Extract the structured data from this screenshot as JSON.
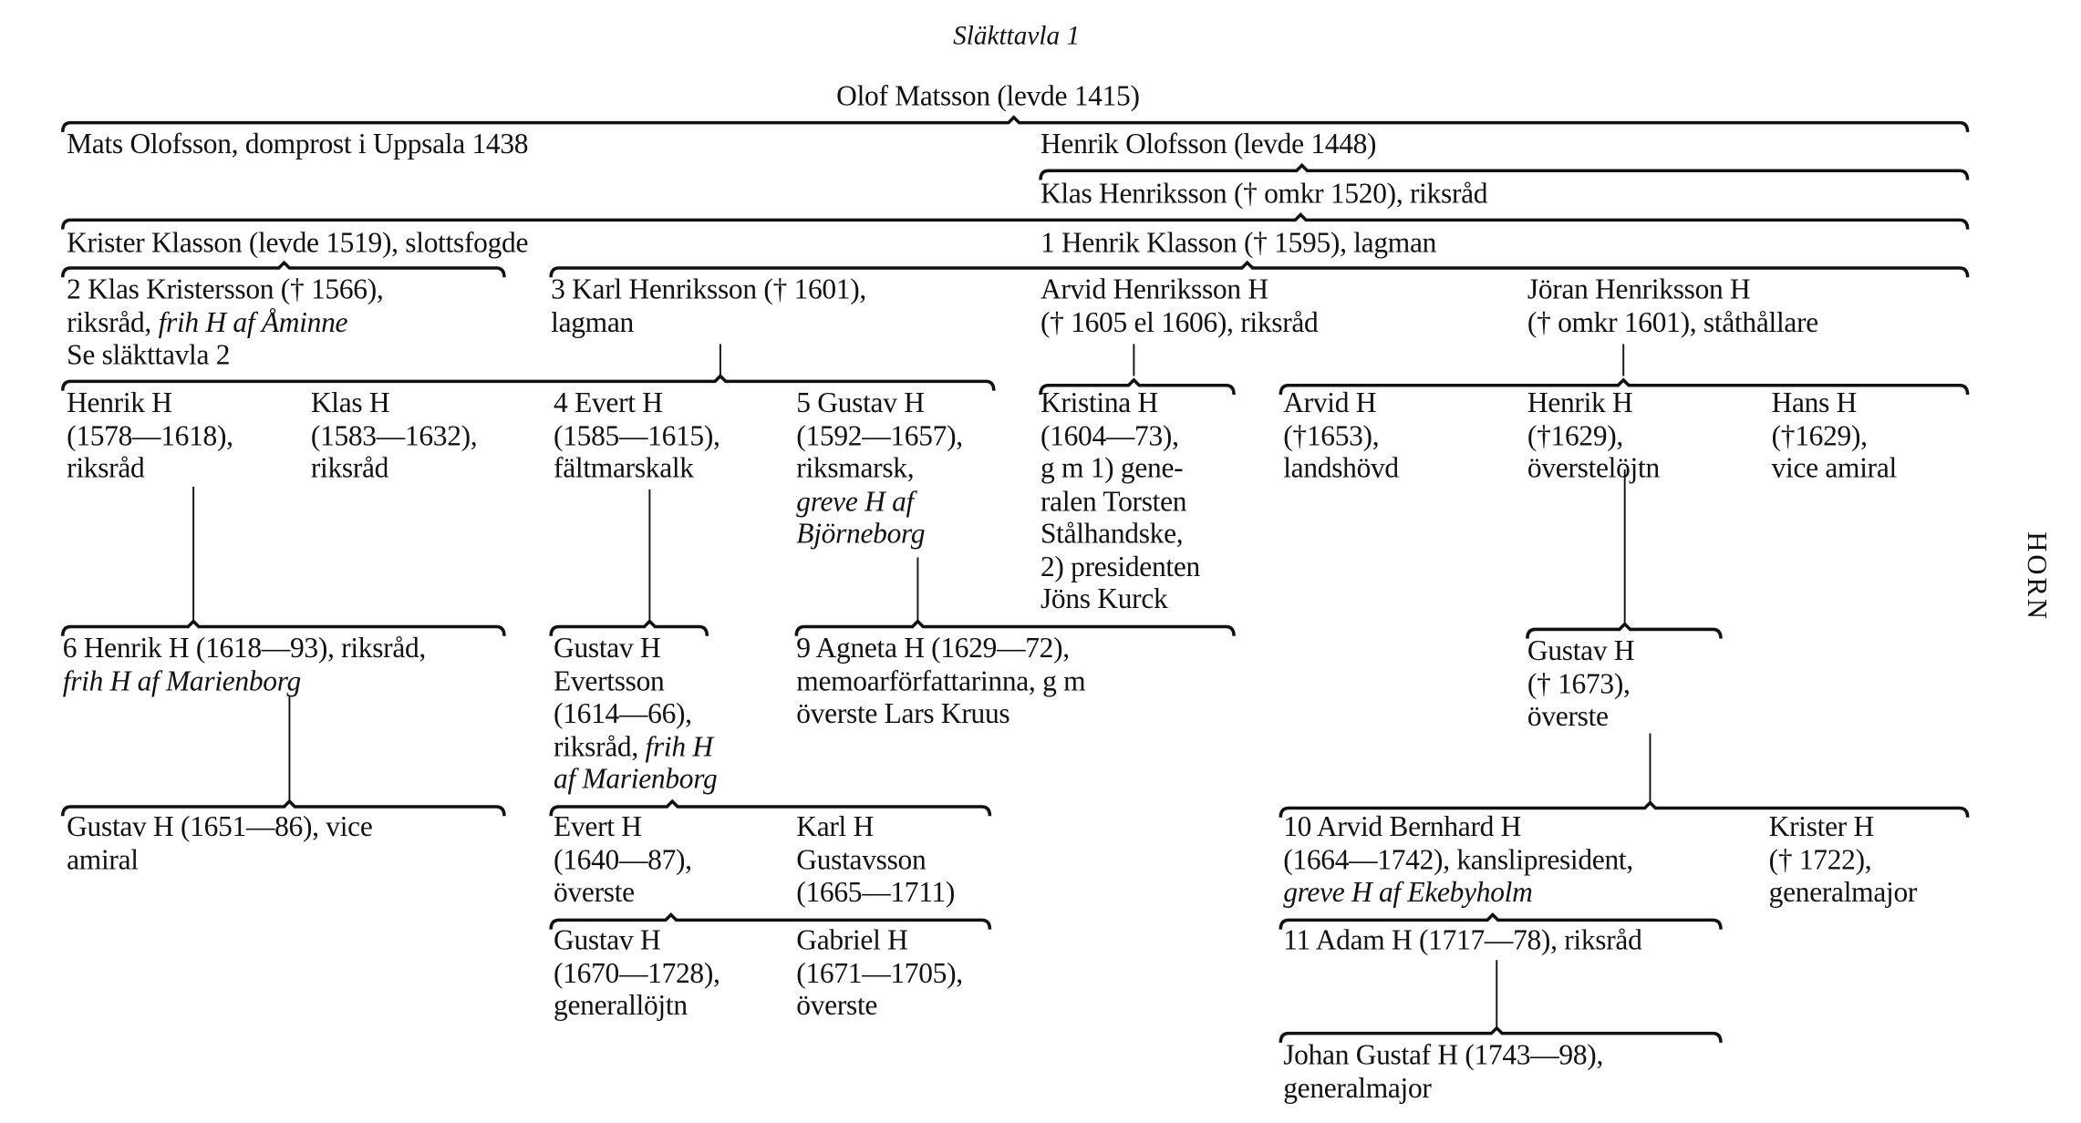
{
  "title": "Släkttavla 1",
  "side_label": "HORN",
  "nodes": [
    {
      "lines": [
        [
          {
            "t": "Olof Matsson (levde 1415)"
          }
        ]
      ]
    },
    {
      "lines": [
        [
          {
            "t": "Mats Olofsson, domprost i Uppsala 1438"
          }
        ]
      ]
    },
    {
      "lines": [
        [
          {
            "t": "Henrik Olofsson (levde 1448)"
          }
        ]
      ]
    },
    {
      "lines": [
        [
          {
            "t": "Klas Henriksson († omkr 1520), riksråd"
          }
        ]
      ]
    },
    {
      "lines": [
        [
          {
            "t": "Krister Klasson (levde 1519), slottsfogde"
          }
        ]
      ]
    },
    {
      "lines": [
        [
          {
            "t": "1 Henrik Klasson († 1595), lagman"
          }
        ]
      ]
    },
    {
      "lines": [
        [
          {
            "t": "2 Klas Kristersson († 1566),"
          }
        ],
        [
          {
            "t": "riksråd, "
          },
          {
            "t": "frih H af Åminne",
            "i": true
          }
        ],
        [
          {
            "t": "Se släkttavla 2"
          }
        ]
      ]
    },
    {
      "lines": [
        [
          {
            "t": "3 Karl Henriksson († 1601),"
          }
        ],
        [
          {
            "t": "lagman"
          }
        ]
      ]
    },
    {
      "lines": [
        [
          {
            "t": "Arvid Henriksson H"
          }
        ],
        [
          {
            "t": "(† 1605 el 1606), riksråd"
          }
        ]
      ]
    },
    {
      "lines": [
        [
          {
            "t": "Jöran Henriksson H"
          }
        ],
        [
          {
            "t": "(† omkr 1601), ståthållare"
          }
        ]
      ]
    },
    {
      "lines": [
        [
          {
            "t": "Henrik H"
          }
        ],
        [
          {
            "t": "(1578—1618),"
          }
        ],
        [
          {
            "t": "riksråd"
          }
        ]
      ]
    },
    {
      "lines": [
        [
          {
            "t": "Klas H"
          }
        ],
        [
          {
            "t": "(1583—1632),"
          }
        ],
        [
          {
            "t": "riksråd"
          }
        ]
      ]
    },
    {
      "lines": [
        [
          {
            "t": "4 Evert H"
          }
        ],
        [
          {
            "t": "(1585—1615),"
          }
        ],
        [
          {
            "t": "fältmarskalk"
          }
        ]
      ]
    },
    {
      "lines": [
        [
          {
            "t": "5 Gustav H"
          }
        ],
        [
          {
            "t": "(1592—1657),"
          }
        ],
        [
          {
            "t": "riksmarsk,"
          }
        ],
        [
          {
            "t": "greve H af",
            "i": true
          }
        ],
        [
          {
            "t": "Björneborg",
            "i": true
          }
        ]
      ]
    },
    {
      "lines": [
        [
          {
            "t": "Kristina H"
          }
        ],
        [
          {
            "t": "(1604—73),"
          }
        ],
        [
          {
            "t": "g m 1) gene-"
          }
        ],
        [
          {
            "t": "ralen Torsten"
          }
        ],
        [
          {
            "t": "Stålhandske,"
          }
        ],
        [
          {
            "t": "2) presidenten"
          }
        ],
        [
          {
            "t": "Jöns Kurck"
          }
        ]
      ]
    },
    {
      "lines": [
        [
          {
            "t": "Arvid H"
          }
        ],
        [
          {
            "t": "(†1653),"
          }
        ],
        [
          {
            "t": "landshövd"
          }
        ]
      ]
    },
    {
      "lines": [
        [
          {
            "t": "Henrik H"
          }
        ],
        [
          {
            "t": "(†1629),"
          }
        ],
        [
          {
            "t": "överstelöjtn"
          }
        ]
      ]
    },
    {
      "lines": [
        [
          {
            "t": "Hans H"
          }
        ],
        [
          {
            "t": "(†1629),"
          }
        ],
        [
          {
            "t": "vice amiral"
          }
        ]
      ]
    },
    {
      "lines": [
        [
          {
            "t": "6 Henrik H (1618—93), riksråd,"
          }
        ],
        [
          {
            "t": "frih H af Marienborg",
            "i": true
          }
        ]
      ]
    },
    {
      "lines": [
        [
          {
            "t": "Gustav H"
          }
        ],
        [
          {
            "t": "Evertsson"
          }
        ],
        [
          {
            "t": "(1614—66),"
          }
        ],
        [
          {
            "t": "riksråd, "
          },
          {
            "t": "frih H",
            "i": true
          }
        ],
        [
          {
            "t": "af Marienborg",
            "i": true
          }
        ]
      ]
    },
    {
      "lines": [
        [
          {
            "t": "9 Agneta H (1629—72),"
          }
        ],
        [
          {
            "t": "memoarförfattarinna, g m"
          }
        ],
        [
          {
            "t": "överste Lars Kruus"
          }
        ]
      ]
    },
    {
      "lines": [
        [
          {
            "t": "Gustav H"
          }
        ],
        [
          {
            "t": "(† 1673),"
          }
        ],
        [
          {
            "t": "överste"
          }
        ]
      ]
    },
    {
      "lines": [
        [
          {
            "t": "Gustav H (1651—86), vice"
          }
        ],
        [
          {
            "t": "amiral"
          }
        ]
      ]
    },
    {
      "lines": [
        [
          {
            "t": "Evert H"
          }
        ],
        [
          {
            "t": "(1640—87),"
          }
        ],
        [
          {
            "t": "överste"
          }
        ]
      ]
    },
    {
      "lines": [
        [
          {
            "t": "Karl H"
          }
        ],
        [
          {
            "t": "Gustavsson"
          }
        ],
        [
          {
            "t": "(1665—1711)"
          }
        ]
      ]
    },
    {
      "lines": [
        [
          {
            "t": "10 Arvid Bernhard H"
          }
        ],
        [
          {
            "t": "(1664—1742), kanslipresident,"
          }
        ],
        [
          {
            "t": "greve H af Ekebyholm",
            "i": true
          }
        ]
      ]
    },
    {
      "lines": [
        [
          {
            "t": "Krister H"
          }
        ],
        [
          {
            "t": "(† 1722),"
          }
        ],
        [
          {
            "t": "generalmajor"
          }
        ]
      ]
    },
    {
      "lines": [
        [
          {
            "t": "Gustav H"
          }
        ],
        [
          {
            "t": "(1670—1728),"
          }
        ],
        [
          {
            "t": "generallöjtn"
          }
        ]
      ]
    },
    {
      "lines": [
        [
          {
            "t": "Gabriel H"
          }
        ],
        [
          {
            "t": "(1671—1705),"
          }
        ],
        [
          {
            "t": "överste"
          }
        ]
      ]
    },
    {
      "lines": [
        [
          {
            "t": "11 Adam H (1717—78), riksråd"
          }
        ]
      ]
    },
    {
      "lines": [
        [
          {
            "t": "Johan Gustaf H (1743—98),"
          }
        ],
        [
          {
            "t": "generalmajor"
          }
        ]
      ]
    }
  ]
}
